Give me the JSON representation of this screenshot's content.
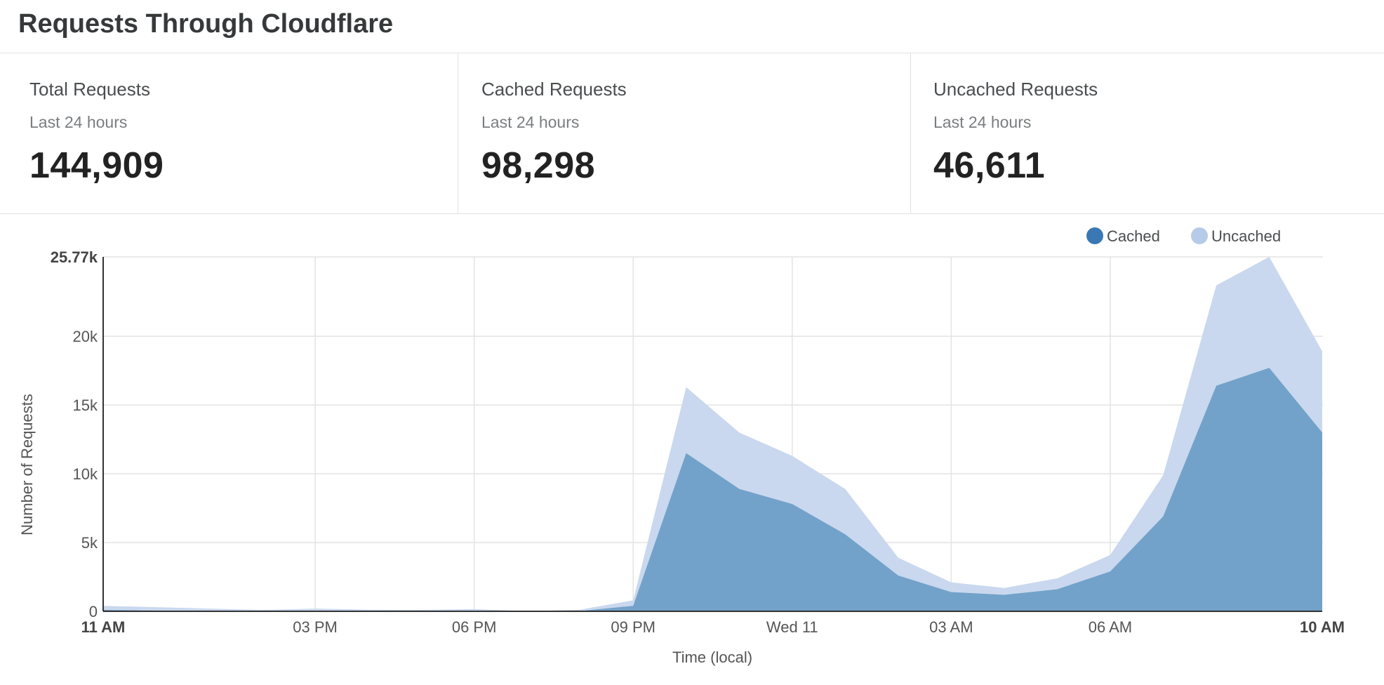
{
  "title": "Requests Through Cloudflare",
  "stats": [
    {
      "label": "Total Requests",
      "sub": "Last 24 hours",
      "value": "144,909"
    },
    {
      "label": "Cached Requests",
      "sub": "Last 24 hours",
      "value": "98,298"
    },
    {
      "label": "Uncached Requests",
      "sub": "Last 24 hours",
      "value": "46,611"
    }
  ],
  "colors": {
    "cached": "#3a78b4",
    "cached_fill": "#72a2c9",
    "uncached": "#b6cbe8",
    "uncached_fill": "#c9d8ee",
    "grid": "#e3e3e3"
  },
  "chart_data": {
    "type": "area",
    "stacked": true,
    "ylabel": "Number of Requests",
    "xlabel": "Time (local)",
    "ylim": [
      0,
      25770
    ],
    "yticks": [
      {
        "value": 0,
        "label": "0"
      },
      {
        "value": 5000,
        "label": "5k"
      },
      {
        "value": 10000,
        "label": "10k"
      },
      {
        "value": 15000,
        "label": "15k"
      },
      {
        "value": 20000,
        "label": "20k"
      },
      {
        "value": 25770,
        "label": "25.77k",
        "bold": true
      }
    ],
    "xlim": [
      0,
      23
    ],
    "xticks": [
      {
        "x": 0,
        "label": "11 AM",
        "bold": true
      },
      {
        "x": 4,
        "label": "03 PM"
      },
      {
        "x": 7,
        "label": "06 PM"
      },
      {
        "x": 10,
        "label": "09 PM"
      },
      {
        "x": 13,
        "label": "Wed 11"
      },
      {
        "x": 16,
        "label": "03 AM"
      },
      {
        "x": 19,
        "label": "06 AM"
      },
      {
        "x": 23,
        "label": "10 AM",
        "bold": true
      }
    ],
    "x": [
      0,
      1,
      2,
      3,
      4,
      5,
      6,
      7,
      8,
      9,
      10,
      11,
      12,
      13,
      14,
      15,
      16,
      17,
      18,
      19,
      20,
      21,
      22,
      23
    ],
    "series": [
      {
        "name": "Cached",
        "values": [
          100,
          50,
          30,
          20,
          40,
          20,
          10,
          20,
          0,
          20,
          400,
          11500,
          8900,
          7800,
          5600,
          2600,
          1400,
          1200,
          1600,
          2900,
          6900,
          16400,
          17700,
          13000
        ]
      },
      {
        "name": "Uncached",
        "values": [
          300,
          250,
          170,
          80,
          160,
          100,
          90,
          150,
          0,
          100,
          400,
          4800,
          4100,
          3500,
          3300,
          1300,
          700,
          500,
          800,
          1200,
          3000,
          7300,
          8070,
          5900
        ]
      }
    ]
  }
}
